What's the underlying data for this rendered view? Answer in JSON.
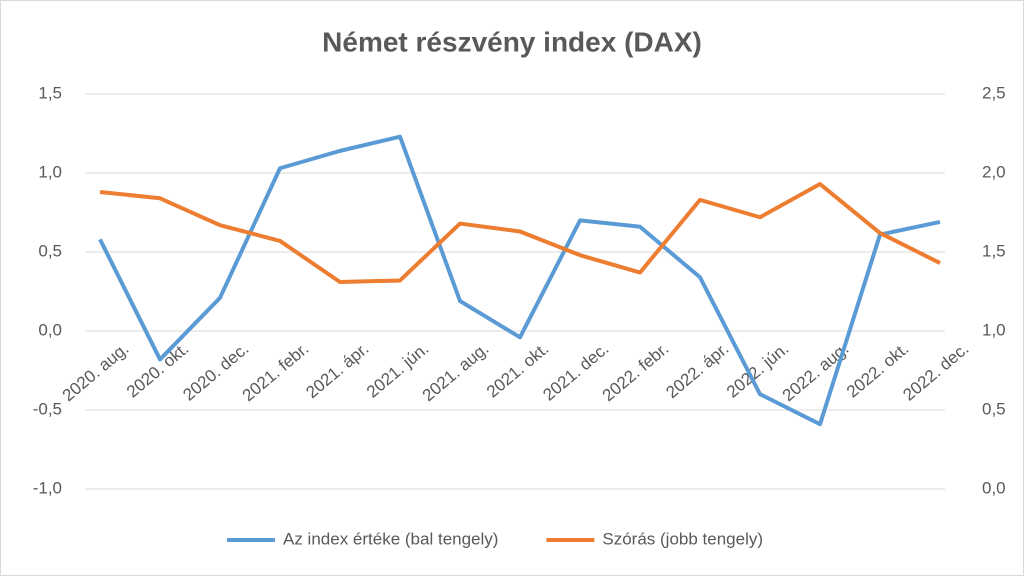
{
  "chart_data": {
    "type": "line",
    "title": "Német részvény index (DAX)",
    "categories": [
      "2020. aug.",
      "2020. okt.",
      "2020. dec.",
      "2021. febr.",
      "2021. ápr.",
      "2021. jún.",
      "2021. aug.",
      "2021. okt.",
      "2021. dec.",
      "2022. febr.",
      "2022. ápr.",
      "2022. jún.",
      "2022. aug.",
      "2022. okt.",
      "2022. dec."
    ],
    "series": [
      {
        "name": "Az index értéke (bal tengely)",
        "color": "#5b9bd5",
        "axis": "y",
        "values": [
          0.58,
          -0.18,
          0.21,
          1.03,
          1.14,
          1.23,
          0.19,
          -0.04,
          0.7,
          0.66,
          0.34,
          -0.4,
          -0.59,
          0.61,
          0.69
        ]
      },
      {
        "name": "Szórás (jobb tengely)",
        "color": "#ed7d31",
        "axis": "y2",
        "values": [
          1.88,
          1.84,
          1.67,
          1.57,
          1.31,
          1.32,
          1.68,
          1.63,
          1.48,
          1.37,
          1.83,
          1.72,
          1.93,
          1.62,
          1.43
        ]
      }
    ],
    "ylim": [
      -1,
      1.5
    ],
    "yticks": [
      {
        "value": -1,
        "label": "-1,0"
      },
      {
        "value": -0.5,
        "label": "-0,5"
      },
      {
        "value": 0,
        "label": "0,0"
      },
      {
        "value": 0.5,
        "label": "0,5"
      },
      {
        "value": 1,
        "label": "1,0"
      },
      {
        "value": 1.5,
        "label": "1,5"
      }
    ],
    "y2lim": [
      0,
      2.5
    ],
    "y2ticks": [
      {
        "value": 0,
        "label": "0,0"
      },
      {
        "value": 0.5,
        "label": "0,5"
      },
      {
        "value": 1,
        "label": "1,0"
      },
      {
        "value": 1.5,
        "label": "1,5"
      },
      {
        "value": 2,
        "label": "2,0"
      },
      {
        "value": 2.5,
        "label": "2,5"
      }
    ],
    "grid": true,
    "legend": "bottom"
  }
}
